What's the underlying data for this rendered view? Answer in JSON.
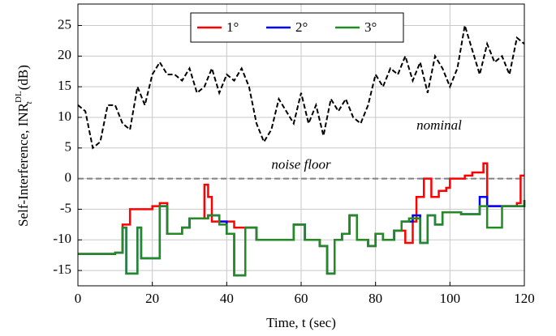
{
  "chart_data": {
    "type": "line",
    "xlabel": "Time, t (sec)",
    "ylabel": {
      "text": "Self-Interference, INR",
      "sub": "t",
      "sup": "DL",
      "unit": "(dB)"
    },
    "xlim": [
      0,
      120
    ],
    "ylim": [
      -17.5,
      28.5
    ],
    "xticks": [
      0,
      20,
      40,
      60,
      80,
      100,
      120
    ],
    "yticks": [
      -15,
      -10,
      -5,
      0,
      5,
      10,
      15,
      20,
      25
    ],
    "grid": true,
    "legend": "top",
    "nominal": {
      "label": "nominal",
      "color": "#000000",
      "x": [
        0,
        2,
        4,
        6,
        8,
        10,
        12,
        14,
        16,
        18,
        20,
        22,
        24,
        26,
        28,
        30,
        32,
        34,
        36,
        38,
        40,
        42,
        44,
        46,
        48,
        50,
        52,
        54,
        56,
        58,
        60,
        62,
        64,
        66,
        68,
        70,
        72,
        74,
        76,
        78,
        80,
        82,
        84,
        86,
        88,
        90,
        92,
        94,
        96,
        98,
        100,
        102,
        104,
        106,
        108,
        110,
        112,
        114,
        116,
        118,
        120
      ],
      "values": [
        12,
        11,
        5,
        6,
        12,
        12,
        9,
        8,
        15,
        12,
        17,
        19,
        17,
        17,
        16,
        18,
        14,
        15,
        18,
        14,
        17,
        16,
        18,
        15,
        9,
        6,
        8,
        13,
        11,
        9,
        14,
        9,
        12,
        7,
        13,
        11,
        13,
        10,
        9,
        12,
        17,
        15,
        18,
        17,
        20,
        16,
        19,
        14,
        20,
        18,
        15,
        18,
        25,
        21,
        17,
        22,
        19,
        20,
        17,
        23,
        22
      ]
    },
    "noise_floor": {
      "label": "noise floor",
      "value": 0,
      "color": "#808080"
    },
    "series": [
      {
        "name": "1°",
        "color": "#ff0000",
        "x": [
          0,
          10,
          12,
          14,
          20,
          22,
          24,
          28,
          30,
          34,
          35,
          36,
          40,
          42,
          45,
          48,
          55,
          58,
          61,
          65,
          67,
          69,
          71,
          73,
          75,
          78,
          80,
          82,
          85,
          88,
          90,
          91,
          93,
          95,
          97,
          99,
          100,
          104,
          106,
          109,
          110,
          118,
          119,
          120
        ],
        "values": [
          -12.3,
          -12.1,
          -7.5,
          -5,
          -4.5,
          -4,
          -9,
          -8,
          -6.5,
          -1,
          -3,
          -7,
          -7,
          -8,
          -8,
          -10,
          -10,
          -7.5,
          -10,
          -11,
          -15.5,
          -10,
          -9,
          -6,
          -10,
          -11,
          -9,
          -10,
          -8.5,
          -10.5,
          -7,
          -3,
          0,
          -3,
          -2,
          -1.5,
          0,
          0.5,
          1,
          2.5,
          -4.5,
          -4,
          0.5,
          0.5
        ]
      },
      {
        "name": "2°",
        "color": "#0000ff",
        "x": [
          0,
          10,
          12,
          13,
          16,
          17,
          22,
          24,
          28,
          30,
          35,
          38,
          40,
          42,
          45,
          48,
          55,
          58,
          61,
          65,
          67,
          69,
          71,
          73,
          75,
          78,
          80,
          82,
          85,
          87,
          90,
          92,
          94,
          96,
          98,
          103,
          108,
          110,
          113,
          114,
          119,
          120
        ],
        "values": [
          -12.3,
          -12.1,
          -8,
          -15.5,
          -8,
          -13,
          -4.5,
          -9,
          -8,
          -6.5,
          -6,
          -7,
          -9,
          -15.8,
          -8,
          -10,
          -10,
          -7.5,
          -10,
          -11,
          -15.5,
          -10,
          -9,
          -6,
          -10,
          -11,
          -9,
          -10,
          -8.5,
          -7,
          -6,
          -10.5,
          -6,
          -7.5,
          -5.5,
          -5.8,
          -3,
          -4.5,
          -4.5,
          -4.5,
          -4.5,
          -3.5
        ]
      },
      {
        "name": "3°",
        "color": "#228b22",
        "x": [
          0,
          10,
          12,
          13,
          16,
          17,
          22,
          24,
          28,
          30,
          35,
          38,
          40,
          42,
          45,
          48,
          55,
          58,
          61,
          65,
          67,
          69,
          71,
          73,
          75,
          78,
          80,
          82,
          85,
          87,
          89,
          92,
          94,
          96,
          98,
          103,
          108,
          110,
          113,
          114,
          119,
          120
        ],
        "values": [
          -12.3,
          -12.1,
          -8,
          -15.5,
          -8,
          -13,
          -4.5,
          -9,
          -8,
          -6.5,
          -6,
          -7.5,
          -9,
          -15.8,
          -8,
          -10,
          -10,
          -7.5,
          -10,
          -11,
          -15.5,
          -10,
          -9,
          -6,
          -10,
          -11,
          -9,
          -10,
          -8.5,
          -7,
          -6.5,
          -10.5,
          -6,
          -7.5,
          -5.5,
          -5.8,
          -4.5,
          -8,
          -8,
          -4.5,
          -4.5,
          -3.5
        ]
      }
    ]
  }
}
